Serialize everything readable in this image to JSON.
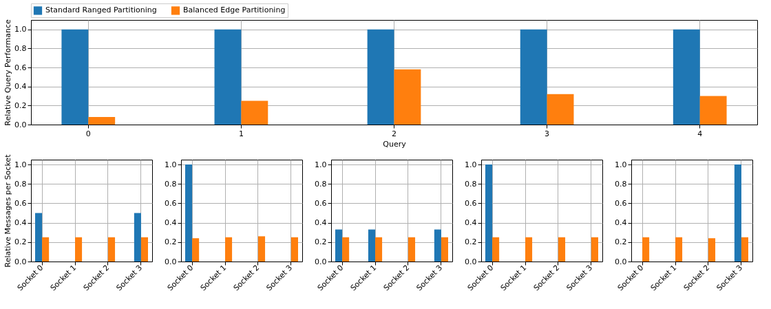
{
  "chart_data": [
    {
      "type": "bar",
      "xlabel": "Query",
      "ylabel": "Relative Query Performance",
      "categories": [
        "0",
        "1",
        "2",
        "3",
        "4"
      ],
      "series": [
        {
          "name": "Standard Ranged Partitioning",
          "color": "#1f77b4",
          "values": [
            1.0,
            1.0,
            1.0,
            1.0,
            1.0
          ]
        },
        {
          "name": "Balanced Edge Partitioning",
          "color": "#ff7f0e",
          "values": [
            0.08,
            0.25,
            0.58,
            0.32,
            0.3
          ]
        }
      ],
      "ylim": [
        0,
        1.1
      ],
      "yticks": [
        {
          "value": 0,
          "label": "0.0"
        },
        {
          "value": 0.2,
          "label": "0.2"
        },
        {
          "value": 0.4,
          "label": "0.4"
        },
        {
          "value": 0.6,
          "label": "0.6"
        },
        {
          "value": 0.8,
          "label": "0.8"
        },
        {
          "value": 1,
          "label": "1.0"
        }
      ],
      "grid": true,
      "legend": "top"
    },
    {
      "type": "bar",
      "ylabel": "Relative Messages per Socket",
      "categories": [
        "Socket 0",
        "Socket 1",
        "Socket 2",
        "Socket 3"
      ],
      "series": [
        {
          "color": "#1f77b4",
          "values": [
            0.5,
            0,
            0,
            0.5
          ]
        },
        {
          "color": "#ff7f0e",
          "values": [
            0.25,
            0.25,
            0.25,
            0.25
          ]
        }
      ],
      "ylim": [
        0,
        1.05
      ],
      "yticks": [
        {
          "value": 0,
          "label": "0.0"
        },
        {
          "value": 0.2,
          "label": "0.2"
        },
        {
          "value": 0.4,
          "label": "0.4"
        },
        {
          "value": 0.6,
          "label": "0.6"
        },
        {
          "value": 0.8,
          "label": "0.8"
        },
        {
          "value": 1,
          "label": "1.0"
        }
      ],
      "grid": true
    },
    {
      "type": "bar",
      "categories": [
        "Socket 0",
        "Socket 1",
        "Socket 2",
        "Socket 3"
      ],
      "series": [
        {
          "color": "#1f77b4",
          "values": [
            1.0,
            0,
            0,
            0
          ]
        },
        {
          "color": "#ff7f0e",
          "values": [
            0.24,
            0.25,
            0.26,
            0.25
          ]
        }
      ],
      "ylim": [
        0,
        1.05
      ],
      "yticks": [
        {
          "value": 0,
          "label": "0.0"
        },
        {
          "value": 0.2,
          "label": "0.2"
        },
        {
          "value": 0.4,
          "label": "0.4"
        },
        {
          "value": 0.6,
          "label": "0.6"
        },
        {
          "value": 0.8,
          "label": "0.8"
        },
        {
          "value": 1,
          "label": "1.0"
        }
      ],
      "grid": true
    },
    {
      "type": "bar",
      "categories": [
        "Socket 0",
        "Socket 1",
        "Socket 2",
        "Socket 3"
      ],
      "series": [
        {
          "color": "#1f77b4",
          "values": [
            0.33,
            0.33,
            0,
            0.33
          ]
        },
        {
          "color": "#ff7f0e",
          "values": [
            0.25,
            0.25,
            0.25,
            0.25
          ]
        }
      ],
      "ylim": [
        0,
        1.05
      ],
      "yticks": [
        {
          "value": 0,
          "label": "0.0"
        },
        {
          "value": 0.2,
          "label": "0.2"
        },
        {
          "value": 0.4,
          "label": "0.4"
        },
        {
          "value": 0.6,
          "label": "0.6"
        },
        {
          "value": 0.8,
          "label": "0.8"
        },
        {
          "value": 1,
          "label": "1.0"
        }
      ],
      "grid": true
    },
    {
      "type": "bar",
      "categories": [
        "Socket 0",
        "Socket 1",
        "Socket 2",
        "Socket 3"
      ],
      "series": [
        {
          "color": "#1f77b4",
          "values": [
            1.0,
            0,
            0,
            0
          ]
        },
        {
          "color": "#ff7f0e",
          "values": [
            0.25,
            0.25,
            0.25,
            0.25
          ]
        }
      ],
      "ylim": [
        0,
        1.05
      ],
      "yticks": [
        {
          "value": 0,
          "label": "0.0"
        },
        {
          "value": 0.2,
          "label": "0.2"
        },
        {
          "value": 0.4,
          "label": "0.4"
        },
        {
          "value": 0.6,
          "label": "0.6"
        },
        {
          "value": 0.8,
          "label": "0.8"
        },
        {
          "value": 1,
          "label": "1.0"
        }
      ],
      "grid": true
    },
    {
      "type": "bar",
      "categories": [
        "Socket 0",
        "Socket 1",
        "Socket 2",
        "Socket 3"
      ],
      "series": [
        {
          "color": "#1f77b4",
          "values": [
            0,
            0,
            0,
            1.0
          ]
        },
        {
          "color": "#ff7f0e",
          "values": [
            0.25,
            0.25,
            0.24,
            0.25
          ]
        }
      ],
      "ylim": [
        0,
        1.05
      ],
      "yticks": [
        {
          "value": 0,
          "label": "0.0"
        },
        {
          "value": 0.2,
          "label": "0.2"
        },
        {
          "value": 0.4,
          "label": "0.4"
        },
        {
          "value": 0.6,
          "label": "0.6"
        },
        {
          "value": 0.8,
          "label": "0.8"
        },
        {
          "value": 1,
          "label": "1.0"
        }
      ],
      "grid": true
    }
  ]
}
